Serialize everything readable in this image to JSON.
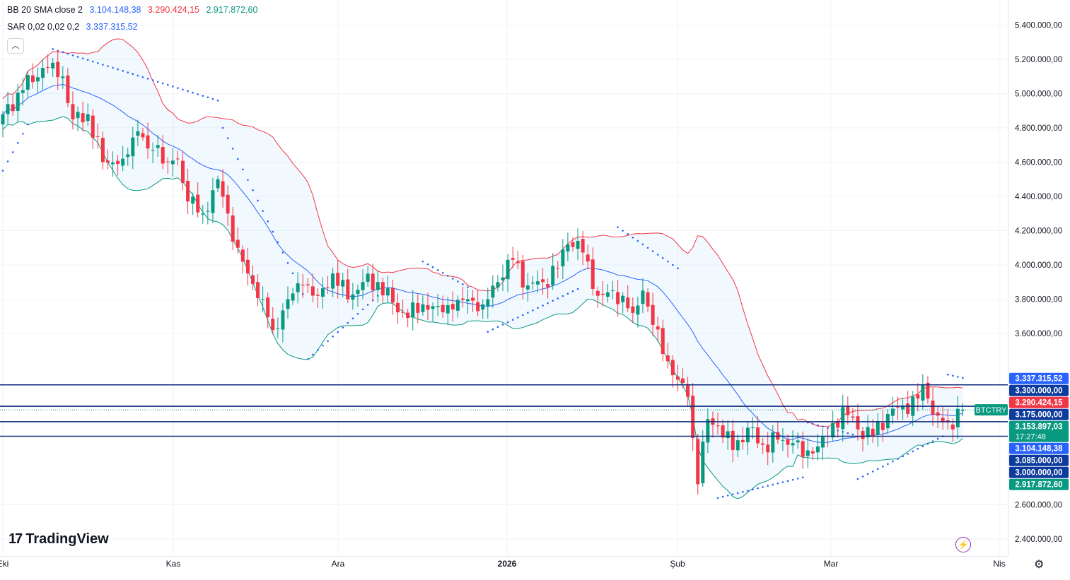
{
  "legend": {
    "bb_label": "BB 20 SMA close 2",
    "bb_basis": "3.104.148,38",
    "bb_upper": "3.290.424,15",
    "bb_lower": "2.917.872,60",
    "sar_label": "SAR 0,02 0,02 0,2",
    "sar_value": "3.337.315,52"
  },
  "symbol": "BTCTRY",
  "countdown": "17:27:48",
  "brand": "TradingView",
  "colors": {
    "up": "#089981",
    "down": "#f23645",
    "bb_basis": "#2962ff",
    "bb_upper": "#f23645",
    "bb_lower": "#089981",
    "band_fill": "#2196f3",
    "sar": "#2962ff",
    "hline": "#0d2c7a",
    "price_up": "#089981"
  },
  "chart_data": {
    "type": "candlestick",
    "y_axis": {
      "range": [
        2320000,
        5500000
      ],
      "ticks": [
        {
          "v": 5400000,
          "label": "5.400.000,00"
        },
        {
          "v": 5200000,
          "label": "5.200.000,00"
        },
        {
          "v": 5000000,
          "label": "5.000.000,00"
        },
        {
          "v": 4800000,
          "label": "4.800.000,00"
        },
        {
          "v": 4600000,
          "label": "4.600.000,00"
        },
        {
          "v": 4400000,
          "label": "4.400.000,00"
        },
        {
          "v": 4200000,
          "label": "4.200.000,00"
        },
        {
          "v": 4000000,
          "label": "4.000.000,00"
        },
        {
          "v": 3800000,
          "label": "3.800.000,00"
        },
        {
          "v": 3600000,
          "label": "3.600.000,00"
        },
        {
          "v": 2600000,
          "label": "2.600.000,00"
        },
        {
          "v": 2400000,
          "label": "2.400.000,00"
        }
      ]
    },
    "x_axis": {
      "ticks": [
        {
          "label": "Eki",
          "bold": false
        },
        {
          "label": "Kas",
          "bold": false
        },
        {
          "label": "Ara",
          "bold": false
        },
        {
          "label": "2026",
          "bold": true
        },
        {
          "label": "Şub",
          "bold": false
        },
        {
          "label": "Mar",
          "bold": false
        },
        {
          "label": "Nis",
          "bold": false
        }
      ]
    },
    "horizontal_lines": [
      3300000,
      3175000,
      3085000,
      3000000
    ],
    "price_labels": [
      {
        "v": 3337315.52,
        "label": "3.337.315,52",
        "role": "sar"
      },
      {
        "v": 3300000,
        "label": "3.300.000,00",
        "role": "hline"
      },
      {
        "v": 3290424.15,
        "label": "3.290.424,15",
        "role": "upper"
      },
      {
        "v": 3175000,
        "label": "3.175.000,00",
        "role": "hline"
      },
      {
        "v": 3153897.03,
        "label": "3.153.897,03",
        "role": "last"
      },
      {
        "v": 3104148.38,
        "label": "3.104.148,38",
        "role": "basis"
      },
      {
        "v": 3085000,
        "label": "3.085.000,00",
        "role": "hline"
      },
      {
        "v": 3000000,
        "label": "3.000.000,00",
        "role": "hline"
      },
      {
        "v": 2917872.6,
        "label": "2.917.872,60",
        "role": "lower"
      }
    ],
    "last_price": 3153897.03,
    "close_anchors": [
      [
        0,
        4880000
      ],
      [
        4,
        5020000
      ],
      [
        8,
        5150000
      ],
      [
        10,
        5180000
      ],
      [
        12,
        5100000
      ],
      [
        14,
        4850000
      ],
      [
        17,
        4880000
      ],
      [
        20,
        4600000
      ],
      [
        24,
        4620000
      ],
      [
        27,
        4780000
      ],
      [
        29,
        4680000
      ],
      [
        31,
        4700000
      ],
      [
        33,
        4600000
      ],
      [
        35,
        4620000
      ],
      [
        37,
        4370000
      ],
      [
        40,
        4300000
      ],
      [
        43,
        4500000
      ],
      [
        45,
        4300000
      ],
      [
        47,
        4100000
      ],
      [
        49,
        3950000
      ],
      [
        52,
        3800000
      ],
      [
        54,
        3620000
      ],
      [
        57,
        3800000
      ],
      [
        60,
        3880000
      ],
      [
        63,
        3820000
      ],
      [
        66,
        3950000
      ],
      [
        69,
        3800000
      ],
      [
        72,
        3900000
      ],
      [
        75,
        3900000
      ],
      [
        78,
        3780000
      ],
      [
        81,
        3690000
      ],
      [
        84,
        3770000
      ],
      [
        87,
        3760000
      ],
      [
        90,
        3740000
      ],
      [
        93,
        3800000
      ],
      [
        96,
        3770000
      ],
      [
        99,
        3900000
      ],
      [
        102,
        4030000
      ],
      [
        105,
        3880000
      ],
      [
        108,
        3900000
      ],
      [
        111,
        3980000
      ],
      [
        113,
        4120000
      ],
      [
        115,
        4140000
      ],
      [
        117,
        4020000
      ],
      [
        119,
        3820000
      ],
      [
        121,
        3840000
      ],
      [
        124,
        3820000
      ],
      [
        126,
        3720000
      ],
      [
        128,
        3850000
      ],
      [
        130,
        3650000
      ],
      [
        132,
        3480000
      ],
      [
        135,
        3330000
      ],
      [
        137,
        3230000
      ],
      [
        139,
        2720000
      ],
      [
        141,
        3100000
      ],
      [
        143,
        3060000
      ],
      [
        146,
        2920000
      ],
      [
        149,
        3050000
      ],
      [
        152,
        2950000
      ],
      [
        155,
        2980000
      ],
      [
        158,
        2960000
      ],
      [
        160,
        2880000
      ],
      [
        162,
        2900000
      ],
      [
        165,
        3000000
      ],
      [
        168,
        3170000
      ],
      [
        171,
        3040000
      ],
      [
        174,
        3000000
      ],
      [
        177,
        3130000
      ],
      [
        180,
        3180000
      ],
      [
        183,
        3220000
      ],
      [
        184,
        3300000
      ],
      [
        185,
        3220000
      ],
      [
        187,
        3120000
      ],
      [
        189,
        3080000
      ],
      [
        190,
        3040000
      ],
      [
        191,
        3160000
      ],
      [
        192,
        3154000
      ]
    ],
    "sar_segments": [
      {
        "from": [
          0,
          4550000
        ],
        "to": [
          5,
          4820000
        ]
      },
      {
        "from": [
          10,
          5260000
        ],
        "to": [
          43,
          4960000
        ]
      },
      {
        "from": [
          44,
          4800000
        ],
        "to": [
          60,
          3830000
        ]
      },
      {
        "from": [
          61,
          3450000
        ],
        "to": [
          75,
          3820000
        ]
      },
      {
        "from": [
          84,
          4020000
        ],
        "to": [
          93,
          3870000
        ]
      },
      {
        "from": [
          97,
          3610000
        ],
        "to": [
          115,
          3860000
        ]
      },
      {
        "from": [
          123,
          4220000
        ],
        "to": [
          135,
          3980000
        ]
      },
      {
        "from": [
          143,
          2640000
        ],
        "to": [
          160,
          2760000
        ]
      },
      {
        "from": [
          161,
          3080000
        ],
        "to": [
          170,
          3010000
        ]
      },
      {
        "from": [
          171,
          2750000
        ],
        "to": [
          188,
          3000000
        ]
      },
      {
        "from": [
          189,
          3360000
        ],
        "to": [
          192,
          3340000
        ]
      }
    ]
  }
}
